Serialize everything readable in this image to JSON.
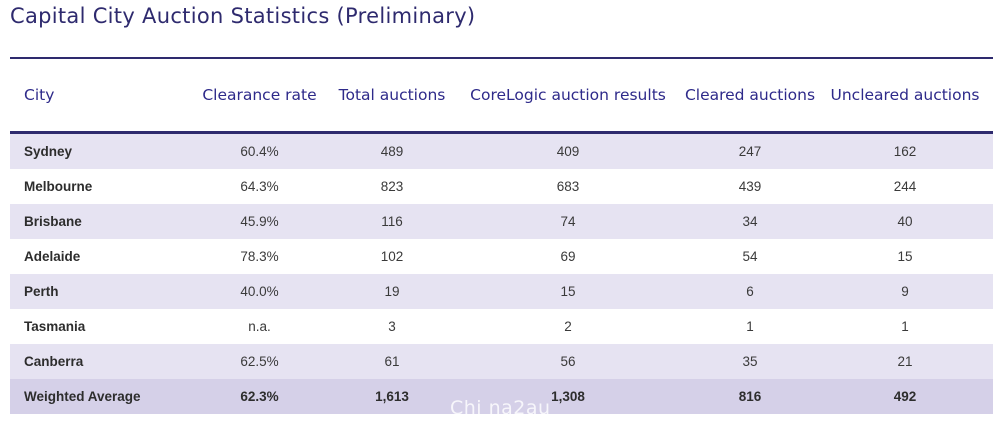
{
  "title": "Capital City Auction Statistics (Preliminary)",
  "columns": [
    "City",
    "Clearance rate",
    "Total auctions",
    "CoreLogic  auction results",
    "Cleared auctions",
    "Uncleared auctions"
  ],
  "rows": [
    {
      "city": "Sydney",
      "clearance_rate": "60.4%",
      "total": "489",
      "results": "409",
      "cleared": "247",
      "uncleared": "162"
    },
    {
      "city": "Melbourne",
      "clearance_rate": "64.3%",
      "total": "823",
      "results": "683",
      "cleared": "439",
      "uncleared": "244"
    },
    {
      "city": "Brisbane",
      "clearance_rate": "45.9%",
      "total": "116",
      "results": "74",
      "cleared": "34",
      "uncleared": "40"
    },
    {
      "city": "Adelaide",
      "clearance_rate": "78.3%",
      "total": "102",
      "results": "69",
      "cleared": "54",
      "uncleared": "15"
    },
    {
      "city": "Perth",
      "clearance_rate": "40.0%",
      "total": "19",
      "results": "15",
      "cleared": "6",
      "uncleared": "9"
    },
    {
      "city": "Tasmania",
      "clearance_rate": "n.a.",
      "total": "3",
      "results": "2",
      "cleared": "1",
      "uncleared": "1"
    },
    {
      "city": "Canberra",
      "clearance_rate": "62.5%",
      "total": "61",
      "results": "56",
      "cleared": "35",
      "uncleared": "21"
    }
  ],
  "average": {
    "city": "Weighted Average",
    "clearance_rate": "62.3%",
    "total": "1,613",
    "results": "1,308",
    "cleared": "816",
    "uncleared": "492"
  },
  "watermark": "Chi na2au",
  "colors": {
    "heading": "#2e2a6e",
    "row_shade": "#e6e3f2",
    "average_row": "#d5d0e8"
  }
}
